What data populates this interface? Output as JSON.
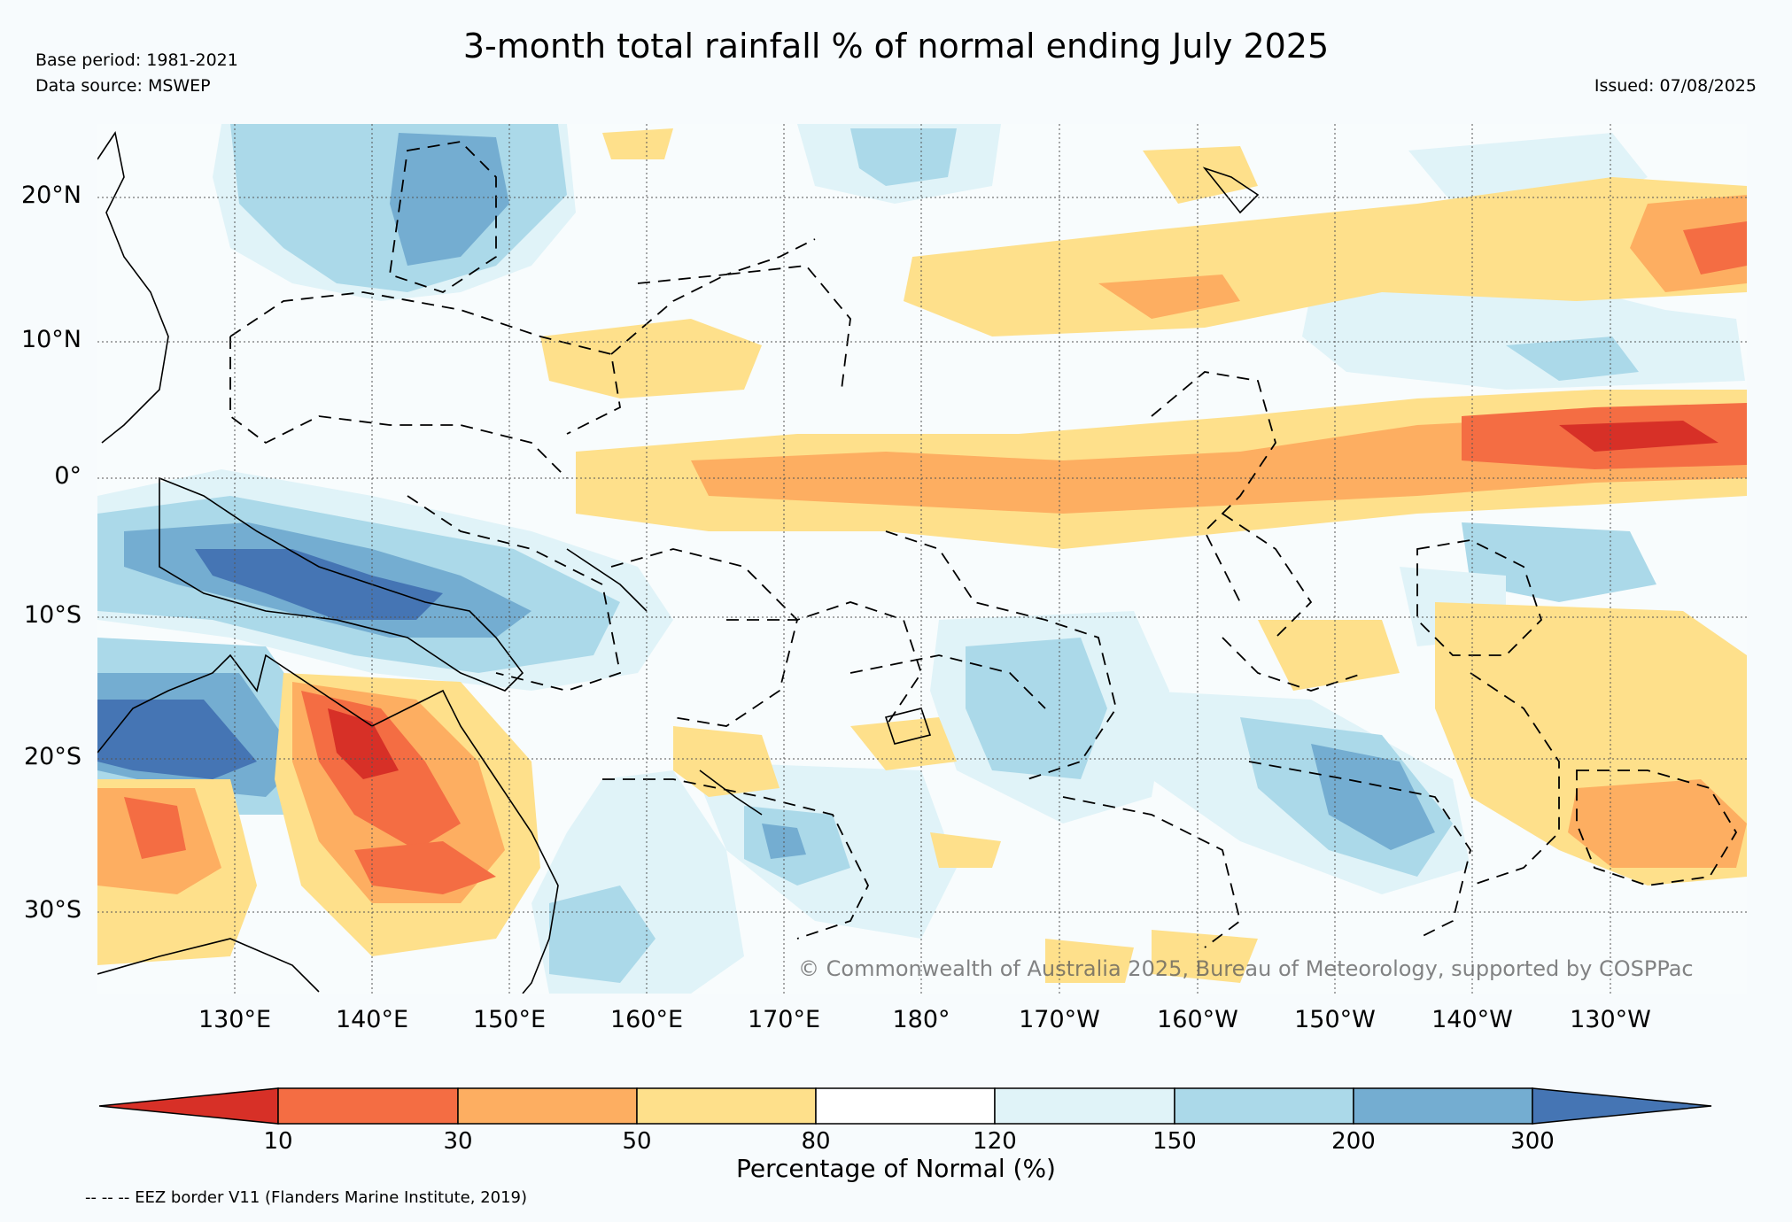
{
  "title": "3-month total rainfall % of normal ending July 2025",
  "base_period": "Base period: 1981-2021",
  "data_source": "Data source: MSWEP",
  "issued": "Issued: 07/08/2025",
  "copyright": "© Commonwealth of Australia 2025, Bureau of Meteorology, supported by COSPPac",
  "eez_note": "-- -- -- EEZ border V11 (Flanders Marine Institute, 2019)",
  "lat_labels": [
    "20°N",
    "10°N",
    "0°",
    "10°S",
    "20°S",
    "30°S"
  ],
  "lon_labels": [
    "130°E",
    "140°E",
    "150°E",
    "160°E",
    "170°E",
    "180°",
    "170°W",
    "160°W",
    "150°W",
    "140°W",
    "130°W"
  ],
  "colorbar": {
    "title": "Percentage of Normal (%)",
    "ticks": [
      "10",
      "30",
      "50",
      "80",
      "120",
      "150",
      "200",
      "300"
    ],
    "colors": [
      "#d73027",
      "#f46d43",
      "#fdae61",
      "#fee08b",
      "#ffffff",
      "#e0f3f8",
      "#abd9e9",
      "#74add1",
      "#4575b4"
    ]
  }
}
